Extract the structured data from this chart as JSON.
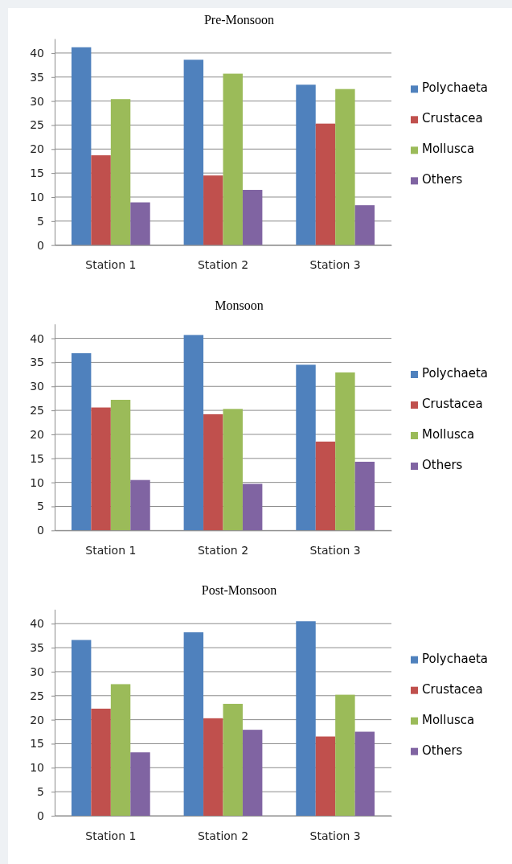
{
  "chart_data": [
    {
      "type": "bar",
      "title": "Pre-Monsoon",
      "categories": [
        "Station 1",
        "Station 2",
        "Station 3"
      ],
      "series": [
        {
          "name": "Polychaeta",
          "color": "#4f81bd",
          "values": [
            41.2,
            38.6,
            33.4
          ]
        },
        {
          "name": "Crustacea",
          "color": "#c0504d",
          "values": [
            18.7,
            14.5,
            25.3
          ]
        },
        {
          "name": "Mollusca",
          "color": "#9bbb59",
          "values": [
            30.4,
            35.7,
            32.5
          ]
        },
        {
          "name": "Others",
          "color": "#8064a2",
          "values": [
            8.9,
            11.5,
            8.3
          ]
        }
      ],
      "ylim": [
        0,
        43
      ],
      "yticks": [
        0,
        5,
        10,
        15,
        20,
        25,
        30,
        35,
        40
      ],
      "grid": "y",
      "legend": "right"
    },
    {
      "type": "bar",
      "title": "Monsoon",
      "categories": [
        "Station 1",
        "Station 2",
        "Station 3"
      ],
      "series": [
        {
          "name": "Polychaeta",
          "color": "#4f81bd",
          "values": [
            36.9,
            40.7,
            34.5
          ]
        },
        {
          "name": "Crustacea",
          "color": "#c0504d",
          "values": [
            25.6,
            24.2,
            18.5
          ]
        },
        {
          "name": "Mollusca",
          "color": "#9bbb59",
          "values": [
            27.2,
            25.3,
            32.9
          ]
        },
        {
          "name": "Others",
          "color": "#8064a2",
          "values": [
            10.5,
            9.7,
            14.3
          ]
        }
      ],
      "ylim": [
        0,
        43
      ],
      "yticks": [
        0,
        5,
        10,
        15,
        20,
        25,
        30,
        35,
        40
      ],
      "grid": "y",
      "legend": "right"
    },
    {
      "type": "bar",
      "title": "Post-Monsoon",
      "categories": [
        "Station 1",
        "Station 2",
        "Station 3"
      ],
      "series": [
        {
          "name": "Polychaeta",
          "color": "#4f81bd",
          "values": [
            36.6,
            38.2,
            40.5
          ]
        },
        {
          "name": "Crustacea",
          "color": "#c0504d",
          "values": [
            22.3,
            20.3,
            16.5
          ]
        },
        {
          "name": "Mollusca",
          "color": "#9bbb59",
          "values": [
            27.4,
            23.3,
            25.2
          ]
        },
        {
          "name": "Others",
          "color": "#8064a2",
          "values": [
            13.2,
            17.9,
            17.5
          ]
        }
      ],
      "ylim": [
        0,
        43
      ],
      "yticks": [
        0,
        5,
        10,
        15,
        20,
        25,
        30,
        35,
        40
      ],
      "grid": "y",
      "legend": "right"
    }
  ]
}
